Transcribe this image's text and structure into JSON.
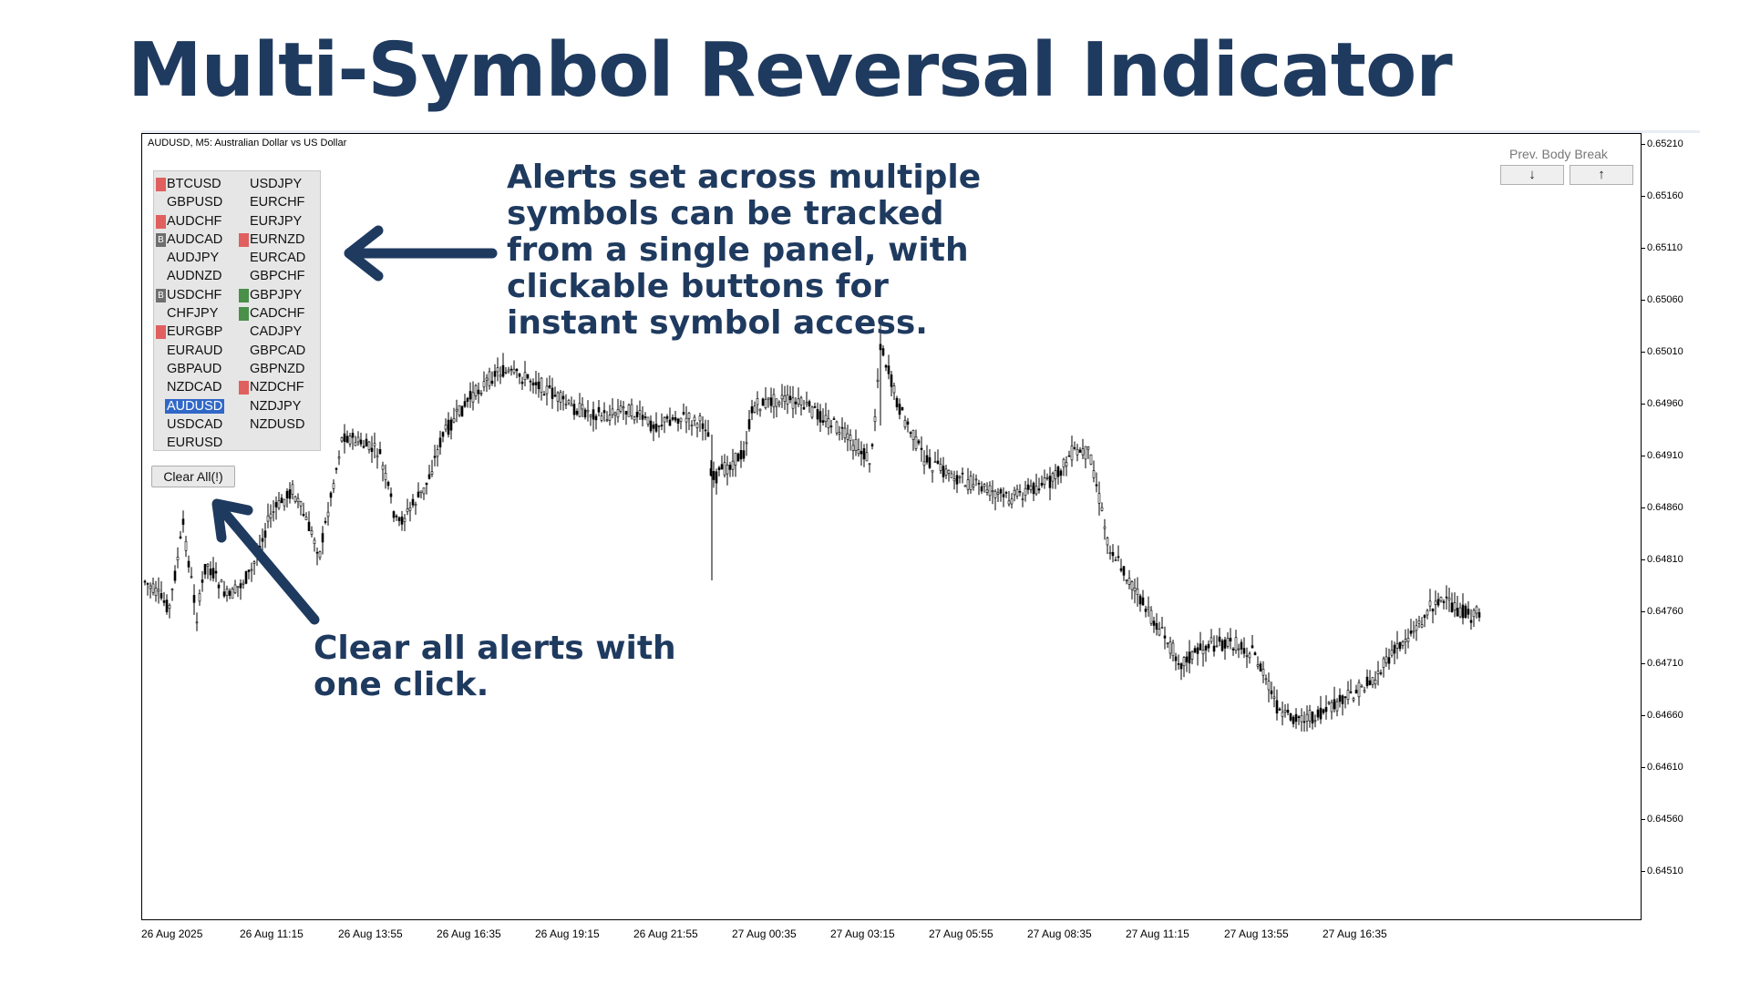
{
  "slide": {
    "title": "Multi-Symbol Reversal Indicator"
  },
  "chart": {
    "header": "AUDUSD, M5:  Australian Dollar vs US Dollar",
    "price_labels": [
      "0.65210",
      "0.65160",
      "0.65110",
      "0.65060",
      "0.65010",
      "0.64960",
      "0.64910",
      "0.64860",
      "0.64810",
      "0.64760",
      "0.64710",
      "0.64660",
      "0.64610",
      "0.64560",
      "0.64510"
    ],
    "time_labels": [
      "26 Aug 2025",
      "26 Aug 11:15",
      "26 Aug 13:55",
      "26 Aug 16:35",
      "26 Aug 19:15",
      "26 Aug 21:55",
      "27 Aug 00:35",
      "27 Aug 03:15",
      "27 Aug 05:55",
      "27 Aug 08:35",
      "27 Aug 11:15",
      "27 Aug 13:55",
      "27 Aug 16:35"
    ],
    "candle_color": "#000000"
  },
  "symbol_panel": {
    "left_column": [
      {
        "symbol": "BTCUSD",
        "flag": "red",
        "flag_text": ""
      },
      {
        "symbol": "GBPUSD",
        "flag": "none",
        "flag_text": ""
      },
      {
        "symbol": "AUDCHF",
        "flag": "red",
        "flag_text": ""
      },
      {
        "symbol": "AUDCAD",
        "flag": "gray",
        "flag_text": "B"
      },
      {
        "symbol": "AUDJPY",
        "flag": "none",
        "flag_text": ""
      },
      {
        "symbol": "AUDNZD",
        "flag": "none",
        "flag_text": ""
      },
      {
        "symbol": "USDCHF",
        "flag": "gray",
        "flag_text": "B"
      },
      {
        "symbol": "CHFJPY",
        "flag": "none",
        "flag_text": ""
      },
      {
        "symbol": "EURGBP",
        "flag": "red",
        "flag_text": ""
      },
      {
        "symbol": "EURAUD",
        "flag": "none",
        "flag_text": ""
      },
      {
        "symbol": "GBPAUD",
        "flag": "none",
        "flag_text": ""
      },
      {
        "symbol": "NZDCAD",
        "flag": "none",
        "flag_text": ""
      },
      {
        "symbol": "AUDUSD",
        "flag": "none",
        "flag_text": "",
        "selected": true
      },
      {
        "symbol": "USDCAD",
        "flag": "none",
        "flag_text": ""
      },
      {
        "symbol": "EURUSD",
        "flag": "none",
        "flag_text": ""
      }
    ],
    "right_column": [
      {
        "symbol": "USDJPY",
        "flag": "none",
        "flag_text": ""
      },
      {
        "symbol": "EURCHF",
        "flag": "none",
        "flag_text": ""
      },
      {
        "symbol": "EURJPY",
        "flag": "none",
        "flag_text": ""
      },
      {
        "symbol": "EURNZD",
        "flag": "red",
        "flag_text": ""
      },
      {
        "symbol": "EURCAD",
        "flag": "none",
        "flag_text": ""
      },
      {
        "symbol": "GBPCHF",
        "flag": "none",
        "flag_text": ""
      },
      {
        "symbol": "GBPJPY",
        "flag": "green",
        "flag_text": ""
      },
      {
        "symbol": "CADCHF",
        "flag": "green",
        "flag_text": ""
      },
      {
        "symbol": "CADJPY",
        "flag": "none",
        "flag_text": ""
      },
      {
        "symbol": "GBPCAD",
        "flag": "none",
        "flag_text": ""
      },
      {
        "symbol": "GBPNZD",
        "flag": "none",
        "flag_text": ""
      },
      {
        "symbol": "NZDCHF",
        "flag": "red",
        "flag_text": ""
      },
      {
        "symbol": "NZDJPY",
        "flag": "none",
        "flag_text": ""
      },
      {
        "symbol": "NZDUSD",
        "flag": "none",
        "flag_text": ""
      }
    ],
    "flag_colors": {
      "red": "#e05f5f",
      "green": "#4a8f4a",
      "gray": "#6e6e6e"
    },
    "clear_button_label": "Clear All(!)"
  },
  "prev_body_break": {
    "label": "Prev. Body Break",
    "down_icon": "↓",
    "up_icon": "↑"
  },
  "annotations": {
    "top_text": "Alerts set across multiple\nsymbols can be tracked\nfrom a single panel, with\nclickable buttons for\ninstant symbol access.",
    "bottom_text": "Clear all alerts with\none click.",
    "color": "#1f3a5f"
  }
}
